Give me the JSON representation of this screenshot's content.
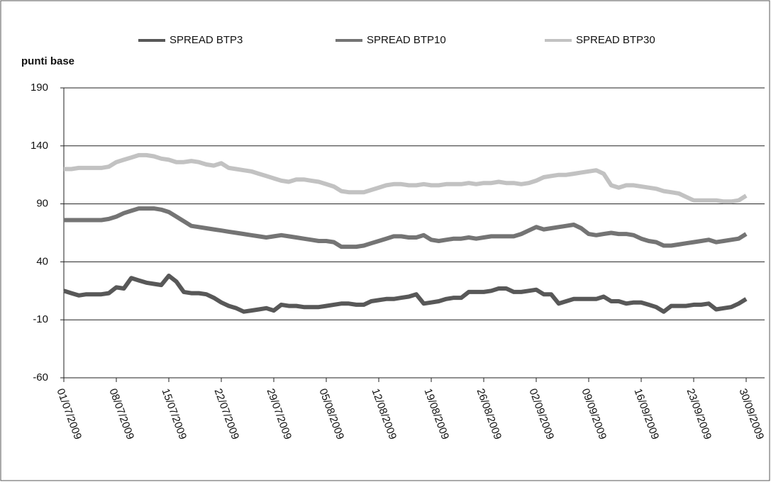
{
  "chart_data": {
    "type": "line",
    "y_label": "punti base",
    "categories": [
      "01/07/2009",
      null,
      null,
      null,
      null,
      null,
      null,
      "08/07/2009",
      null,
      null,
      null,
      null,
      null,
      null,
      "15/07/2009",
      null,
      null,
      null,
      null,
      null,
      null,
      "22/07/2009",
      null,
      null,
      null,
      null,
      null,
      null,
      "29/07/2009",
      null,
      null,
      null,
      null,
      null,
      null,
      "05/08/2009",
      null,
      null,
      null,
      null,
      null,
      null,
      "12/08/2009",
      null,
      null,
      null,
      null,
      null,
      null,
      "19/08/2009",
      null,
      null,
      null,
      null,
      null,
      null,
      "26/08/2009",
      null,
      null,
      null,
      null,
      null,
      null,
      "02/09/2009",
      null,
      null,
      null,
      null,
      null,
      null,
      "09/09/2009",
      null,
      null,
      null,
      null,
      null,
      null,
      "16/09/2009",
      null,
      null,
      null,
      null,
      null,
      null,
      "23/09/2009",
      null,
      null,
      null,
      null,
      null,
      null,
      "30/09/2009"
    ],
    "series": [
      {
        "name": "SPREAD BTP3",
        "color": "#585858",
        "values": [
          15,
          13,
          11,
          12,
          12,
          12,
          13,
          18,
          17,
          26,
          24,
          22,
          21,
          20,
          28,
          23,
          14,
          13,
          13,
          12,
          9,
          5,
          2,
          0,
          -3,
          -2,
          -1,
          0,
          -2,
          3,
          2,
          2,
          1,
          1,
          1,
          2,
          3,
          4,
          4,
          3,
          3,
          6,
          7,
          8,
          8,
          9,
          10,
          12,
          4,
          5,
          6,
          8,
          9,
          9,
          14,
          14,
          14,
          15,
          17,
          17,
          14,
          14,
          15,
          16,
          12,
          12,
          4,
          6,
          8,
          8,
          8,
          8,
          10,
          6,
          6,
          4,
          5,
          5,
          3,
          1,
          -3,
          2,
          2,
          2,
          3,
          3,
          4,
          -1,
          0,
          1,
          4,
          8
        ]
      },
      {
        "name": "SPREAD BTP10",
        "color": "#747474",
        "values": [
          76,
          76,
          76,
          76,
          76,
          76,
          77,
          79,
          82,
          84,
          86,
          86,
          86,
          85,
          83,
          79,
          75,
          71,
          70,
          69,
          68,
          67,
          66,
          65,
          64,
          63,
          62,
          61,
          62,
          63,
          62,
          61,
          60,
          59,
          58,
          58,
          57,
          53,
          53,
          53,
          54,
          56,
          58,
          60,
          62,
          62,
          61,
          61,
          63,
          59,
          58,
          59,
          60,
          60,
          61,
          60,
          61,
          62,
          62,
          62,
          62,
          64,
          67,
          70,
          68,
          69,
          70,
          71,
          72,
          69,
          64,
          63,
          64,
          65,
          64,
          64,
          63,
          60,
          58,
          57,
          54,
          54,
          55,
          56,
          57,
          58,
          59,
          57,
          58,
          59,
          60,
          64
        ]
      },
      {
        "name": "SPREAD BTP30",
        "color": "#c2c2c2",
        "values": [
          120,
          120,
          121,
          121,
          121,
          121,
          122,
          126,
          128,
          130,
          132,
          132,
          131,
          129,
          128,
          126,
          126,
          127,
          126,
          124,
          123,
          125,
          121,
          120,
          119,
          118,
          116,
          114,
          112,
          110,
          109,
          111,
          111,
          110,
          109,
          107,
          105,
          101,
          100,
          100,
          100,
          102,
          104,
          106,
          107,
          107,
          106,
          106,
          107,
          106,
          106,
          107,
          107,
          107,
          108,
          107,
          108,
          108,
          109,
          108,
          108,
          107,
          108,
          110,
          113,
          114,
          115,
          115,
          116,
          117,
          118,
          119,
          116,
          106,
          104,
          106,
          106,
          105,
          104,
          103,
          101,
          100,
          99,
          96,
          93,
          93,
          93,
          93,
          92,
          92,
          93,
          97
        ]
      }
    ],
    "ylim": [
      -60,
      190
    ],
    "yticks": [
      -60,
      -10,
      40,
      90,
      140,
      190
    ],
    "grid": true
  }
}
